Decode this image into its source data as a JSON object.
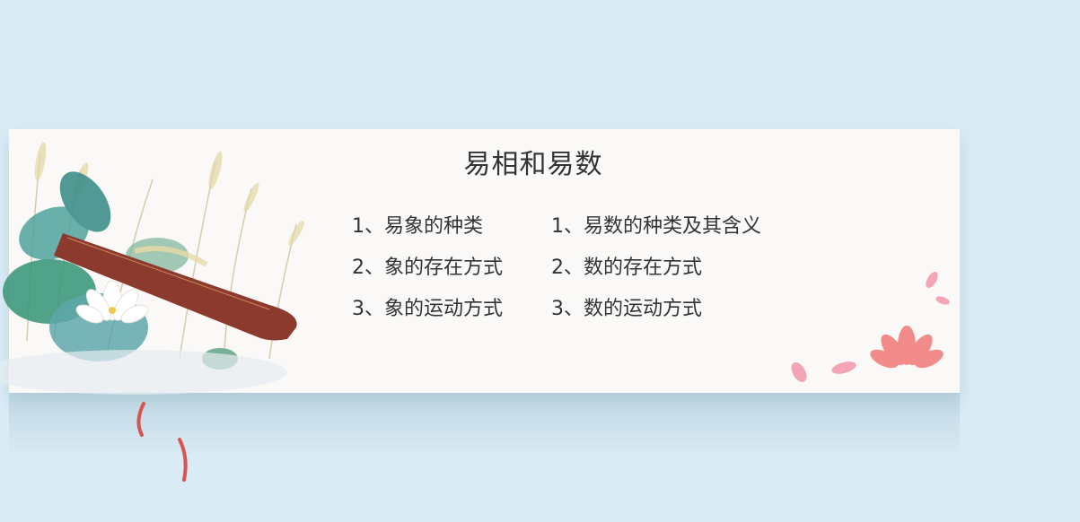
{
  "title": "易相和易数",
  "left_list": [
    "1、易象的种类",
    "2、象的存在方式",
    "3、象的运动方式"
  ],
  "right_list": [
    "1、易数的种类及其含义",
    "2、数的存在方式",
    "3、数的运动方式"
  ],
  "colors": {
    "background": "#d9ebf5",
    "banner": "#faf9f7",
    "text": "#333333",
    "guqin": "#8c3a2e",
    "lotus_leaf": "#3e8f8a",
    "lotus_flower": "#f07a78"
  }
}
